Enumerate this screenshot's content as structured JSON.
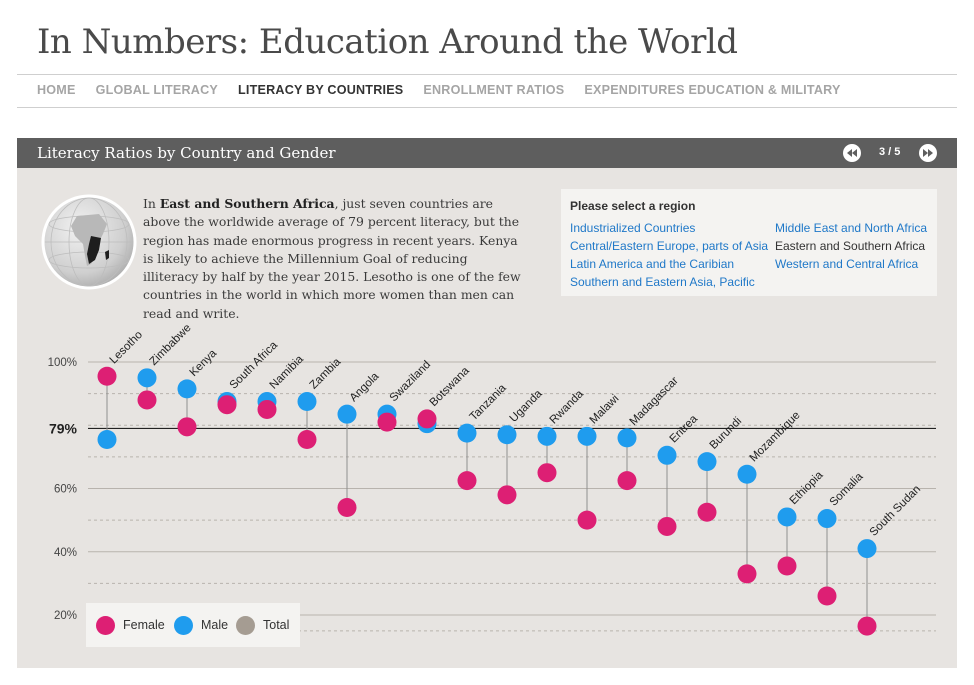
{
  "header": {
    "title": "In Numbers: Education Around the World"
  },
  "nav": {
    "items": [
      {
        "label": "HOME",
        "active": false
      },
      {
        "label": "GLOBAL LITERACY",
        "active": false
      },
      {
        "label": "LITERACY BY COUNTRIES",
        "active": true
      },
      {
        "label": "ENROLLMENT RATIOS",
        "active": false
      },
      {
        "label": "EXPENDITURES EDUCATION & MILITARY",
        "active": false
      }
    ]
  },
  "panel": {
    "title": "Literacy Ratios by Country and Gender",
    "pager": "3 / 5",
    "prev_icon": "rewind-icon",
    "next_icon": "fast-forward-icon"
  },
  "intro": {
    "region_name": "East and Southern Africa",
    "lead": "In ",
    "rest": ", just seven countries are above the worldwide average of 79 percent literacy, but the region has made enormous progress in recent years. Kenya is likely to achieve the Millennium Goal of reducing illiteracy by half by the year 2015. Lesotho is one of the few countries in the world in which more women than men can read and write."
  },
  "region_selector": {
    "heading": "Please select a region",
    "regions": [
      {
        "label": "Industrialized Countries",
        "current": false
      },
      {
        "label": "Central/Eastern Europe, parts of Asia",
        "current": false
      },
      {
        "label": "Latin America and the Caribian",
        "current": false
      },
      {
        "label": "Southern and Eastern Asia, Pacific",
        "current": false
      },
      {
        "label": "Middle East and North Africa",
        "current": false
      },
      {
        "label": "Eastern and Southern Africa",
        "current": true
      },
      {
        "label": "Western and Central Africa",
        "current": false
      }
    ]
  },
  "legend": {
    "female": "Female",
    "male": "Male",
    "total": "Total"
  },
  "colors": {
    "female": "#dd1f74",
    "male": "#1f9cee",
    "total": "#a59c92",
    "panel_bg": "#e7e4e1",
    "header_bg": "#5e5e5e"
  },
  "chart_data": {
    "type": "scatter",
    "subtype": "dumbbell",
    "ylim": [
      15,
      103
    ],
    "y_ticks": [
      {
        "value": 100,
        "label": "100%"
      },
      {
        "value": 79,
        "label": "79%"
      },
      {
        "value": 60,
        "label": "60%"
      },
      {
        "value": 40,
        "label": "40%"
      },
      {
        "value": 20,
        "label": "20%"
      }
    ],
    "average": 79,
    "categories": [
      "Lesotho",
      "Zimbabwe",
      "Kenya",
      "South Africa",
      "Namibia",
      "Zambia",
      "Angola",
      "Swaziland",
      "Botswana",
      "Tanzania",
      "Uganda",
      "Rwanda",
      "Malawi",
      "Madagascar",
      "Eritrea",
      "Burundi",
      "Mozambique",
      "Ethiopia",
      "Somalia",
      "South Sudan"
    ],
    "series": [
      {
        "name": "Female",
        "values": [
          95.5,
          88,
          79.5,
          86.5,
          85,
          75.5,
          54,
          81,
          82,
          62.5,
          58,
          65,
          50,
          62.5,
          48,
          52.5,
          33,
          35.5,
          26,
          16.5
        ]
      },
      {
        "name": "Male",
        "values": [
          75.5,
          95,
          91.5,
          87.5,
          87.5,
          87.5,
          83.5,
          83.5,
          80.5,
          77.5,
          77,
          76.5,
          76.5,
          76,
          70.5,
          68.5,
          64.5,
          51,
          50.5,
          41
        ]
      }
    ],
    "legend_position": "bottom-left"
  }
}
